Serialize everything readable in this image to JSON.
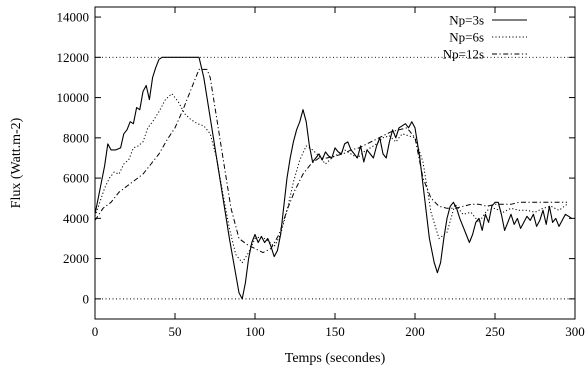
{
  "chart_data": {
    "type": "line",
    "xlabel": "Temps (secondes)",
    "ylabel": "Flux (Watt.m-2)",
    "xlim": [
      0,
      300
    ],
    "ylim": [
      -1000,
      14500
    ],
    "xticks": [
      0,
      50,
      100,
      150,
      200,
      250,
      300
    ],
    "yticks": [
      0,
      2000,
      4000,
      6000,
      8000,
      10000,
      12000,
      14000
    ],
    "grid": false,
    "legend_position": "top-right",
    "reference_lines": [
      {
        "y": 12000,
        "style": "dotted"
      },
      {
        "y": 0,
        "style": "dotted"
      }
    ],
    "series": [
      {
        "name": "Np=3s",
        "style": "solid",
        "color": "#000000",
        "x": [
          0,
          3,
          6,
          8,
          10,
          13,
          16,
          18,
          20,
          22,
          24,
          26,
          28,
          30,
          32,
          34,
          36,
          38,
          40,
          42,
          45,
          50,
          55,
          60,
          65,
          68,
          72,
          76,
          80,
          84,
          88,
          90,
          92,
          94,
          96,
          98,
          100,
          102,
          104,
          106,
          108,
          110,
          112,
          114,
          116,
          118,
          120,
          122,
          124,
          126,
          128,
          130,
          132,
          134,
          136,
          138,
          140,
          142,
          144,
          146,
          148,
          150,
          152,
          154,
          156,
          158,
          160,
          162,
          164,
          166,
          168,
          170,
          172,
          174,
          176,
          178,
          180,
          182,
          184,
          186,
          188,
          190,
          192,
          194,
          196,
          198,
          200,
          203,
          206,
          209,
          212,
          214,
          216,
          218,
          220,
          222,
          224,
          226,
          228,
          230,
          232,
          234,
          236,
          238,
          240,
          242,
          244,
          246,
          248,
          250,
          252,
          254,
          256,
          258,
          260,
          262,
          264,
          266,
          268,
          270,
          272,
          274,
          276,
          278,
          280,
          282,
          284,
          286,
          288,
          290,
          292,
          294,
          296,
          298
        ],
        "values": [
          4200,
          5400,
          6600,
          7700,
          7400,
          7400,
          7500,
          8200,
          8400,
          8800,
          8700,
          9500,
          9400,
          10300,
          10600,
          9900,
          11000,
          11500,
          11900,
          12000,
          12000,
          12000,
          12000,
          12000,
          12000,
          11000,
          9000,
          7000,
          5000,
          3000,
          1200,
          300,
          0,
          800,
          2000,
          2800,
          3200,
          2800,
          3100,
          2800,
          3000,
          2600,
          2100,
          2400,
          3200,
          4600,
          6000,
          7000,
          7800,
          8400,
          8800,
          9400,
          8800,
          7600,
          6800,
          7000,
          7200,
          6900,
          7300,
          7100,
          7000,
          7500,
          7300,
          7200,
          7700,
          7800,
          7400,
          7200,
          7000,
          7600,
          6800,
          7400,
          7200,
          7000,
          7600,
          8000,
          7200,
          7000,
          7800,
          8400,
          8000,
          8500,
          8600,
          8700,
          8500,
          8800,
          8500,
          7000,
          5000,
          3000,
          1800,
          1300,
          1800,
          3000,
          4000,
          4600,
          4800,
          4500,
          4000,
          3600,
          3200,
          2800,
          3200,
          3800,
          4000,
          3400,
          4200,
          3800,
          4600,
          4800,
          4800,
          4200,
          3400,
          3800,
          4200,
          3700,
          4000,
          3500,
          3800,
          4100,
          3900,
          4200,
          3600,
          3900,
          4400,
          3700,
          4600,
          3800,
          4000,
          3600,
          3900,
          4200,
          4100,
          4000
        ]
      },
      {
        "name": "Np=6s",
        "style": "dotted",
        "color": "#000000",
        "x": [
          0,
          3,
          6,
          9,
          12,
          15,
          18,
          21,
          24,
          27,
          30,
          33,
          36,
          40,
          44,
          48,
          52,
          56,
          60,
          64,
          68,
          72,
          76,
          80,
          84,
          88,
          92,
          96,
          100,
          104,
          108,
          112,
          116,
          120,
          124,
          128,
          132,
          136,
          140,
          144,
          148,
          152,
          156,
          160,
          164,
          168,
          172,
          176,
          180,
          184,
          188,
          192,
          196,
          200,
          205,
          210,
          215,
          220,
          225,
          230,
          235,
          240,
          245,
          250,
          255,
          260,
          265,
          270,
          275,
          280,
          285,
          290,
          295
        ],
        "values": [
          4100,
          4800,
          5500,
          6000,
          6300,
          6200,
          6700,
          6900,
          7500,
          7600,
          7800,
          8500,
          8800,
          9300,
          9900,
          10200,
          9800,
          9200,
          8900,
          8700,
          8600,
          8200,
          7000,
          5200,
          3500,
          2200,
          1800,
          2300,
          3000,
          3100,
          2900,
          2600,
          3200,
          4400,
          5800,
          6900,
          7600,
          7400,
          7100,
          6700,
          7000,
          7200,
          7400,
          7200,
          7000,
          7300,
          7500,
          7700,
          8000,
          8100,
          7800,
          8200,
          8100,
          8000,
          6800,
          4300,
          3000,
          3300,
          4700,
          4200,
          4300,
          3800,
          4400,
          4500,
          4300,
          4500,
          4400,
          4400,
          4300,
          4500,
          4600,
          4400,
          4700
        ]
      },
      {
        "name": "Np=12s",
        "style": "dashdot",
        "color": "#000000",
        "x": [
          0,
          5,
          10,
          15,
          20,
          25,
          30,
          35,
          40,
          45,
          50,
          55,
          60,
          65,
          70,
          72,
          75,
          80,
          85,
          90,
          95,
          100,
          105,
          110,
          115,
          120,
          125,
          130,
          135,
          140,
          145,
          150,
          155,
          160,
          165,
          170,
          175,
          180,
          185,
          190,
          195,
          200,
          205,
          210,
          215,
          220,
          225,
          230,
          235,
          240,
          245,
          250,
          255,
          260,
          265,
          270,
          275,
          280,
          285,
          290,
          295
        ],
        "values": [
          3900,
          4500,
          4800,
          5300,
          5600,
          5900,
          6200,
          6700,
          7200,
          7900,
          8500,
          9400,
          10400,
          11400,
          11400,
          11000,
          9500,
          7000,
          4500,
          3000,
          2700,
          2500,
          2300,
          2500,
          3200,
          4400,
          5400,
          6200,
          6700,
          7000,
          7000,
          7100,
          7200,
          7400,
          7500,
          7700,
          7900,
          8100,
          8300,
          8400,
          8500,
          8000,
          6000,
          5000,
          4600,
          4500,
          4500,
          4600,
          4700,
          4700,
          4600,
          4700,
          4700,
          4700,
          4800,
          4800,
          4800,
          4800,
          4800,
          4800,
          4800
        ]
      }
    ]
  }
}
